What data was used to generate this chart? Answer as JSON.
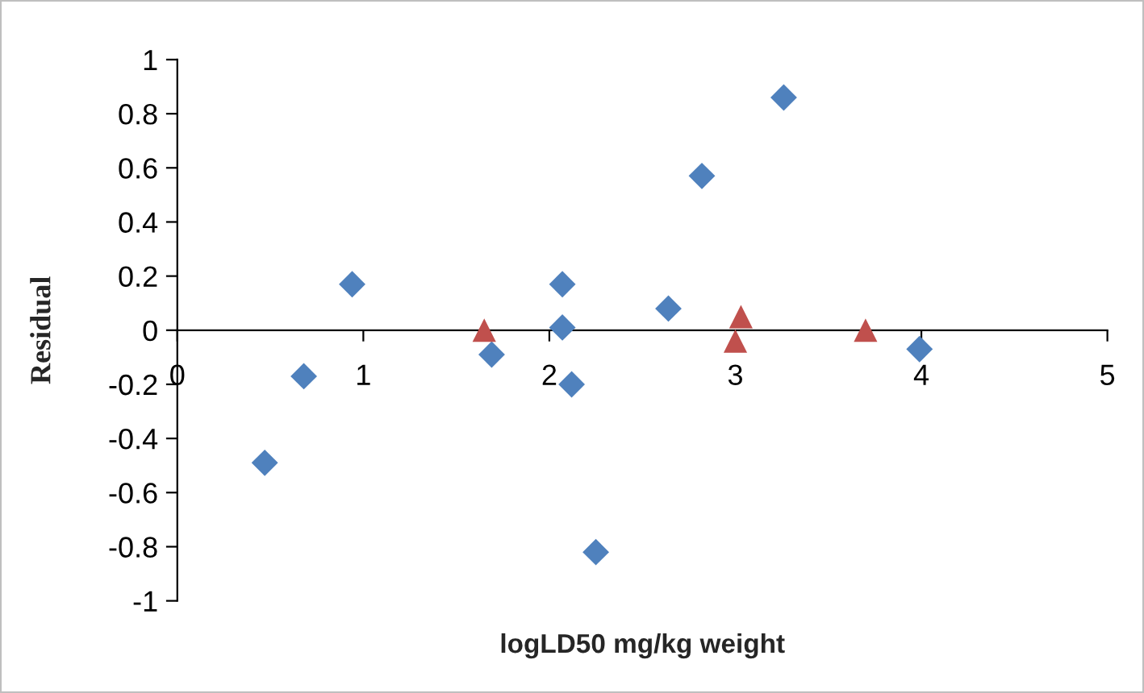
{
  "chart_data": {
    "type": "scatter",
    "xlabel": "logLD50 mg/kg weight",
    "ylabel": "Residual",
    "xlim": [
      0,
      5
    ],
    "xticks": [
      0,
      1,
      2,
      3,
      4,
      5
    ],
    "ylim": [
      -1,
      1
    ],
    "yticks": [
      {
        "value": -1,
        "label": "-1"
      },
      {
        "value": -0.8,
        "label": "-0.8"
      },
      {
        "value": -0.6,
        "label": "-0.6"
      },
      {
        "value": -0.4,
        "label": "-0.4"
      },
      {
        "value": -0.2,
        "label": "-0.2"
      },
      0,
      0.2,
      0.4,
      0.6,
      0.8,
      1
    ],
    "grid": false,
    "legend": false,
    "series": [
      {
        "color": "#4f81bd",
        "marker": "diamond",
        "x": [
          0.47,
          0.68,
          0.94,
          1.69,
          2.07,
          2.07,
          2.12,
          2.25,
          2.64,
          2.82,
          3.26,
          3.99
        ],
        "values": [
          -0.49,
          -0.17,
          0.17,
          -0.09,
          0.17,
          0.01,
          -0.2,
          -0.82,
          0.08,
          0.57,
          0.86,
          -0.07
        ]
      },
      {
        "color": "#c0504d",
        "marker": "triangle",
        "x": [
          1.65,
          3.0,
          3.03,
          3.7
        ],
        "values": [
          0.0,
          -0.04,
          0.05,
          0.0
        ]
      }
    ]
  }
}
